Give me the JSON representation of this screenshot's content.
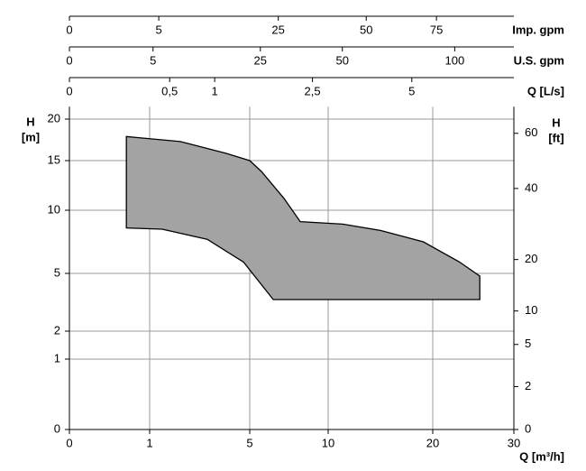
{
  "chart_data": {
    "type": "area",
    "top_axes": [
      {
        "label": "Imp. gpm",
        "ticks": [
          0,
          5,
          25,
          50,
          75
        ]
      },
      {
        "label": "U.S. gpm",
        "ticks": [
          0,
          5,
          25,
          50,
          100
        ]
      },
      {
        "label": "Q [L/s]",
        "ticks": [
          0,
          {
            "value": 0.5,
            "label": "0,5"
          },
          1,
          {
            "value": 2.5,
            "label": "2,5"
          },
          5
        ]
      }
    ],
    "xlabel": "Q [m³/h]",
    "ylabel": "H",
    "yunit": "[m]",
    "y2label": "H",
    "y2unit": "[ft]",
    "xlim": [
      0,
      30
    ],
    "xticks": [
      0,
      1,
      5,
      10,
      20,
      30
    ],
    "ylim": [
      0,
      21.5
    ],
    "yticks": [
      0,
      1,
      2,
      5,
      10,
      15,
      20
    ],
    "y2ticks": [
      0,
      2,
      5,
      10,
      20,
      40,
      60
    ],
    "grid": true,
    "color": "#a3a3a3",
    "area": {
      "x": [
        0.71,
        0.82,
        2.23,
        4.03,
        5.0,
        5.75,
        7.18,
        8.22,
        11.4,
        15.0,
        19.1,
        23.3,
        25.8,
        25.8,
        6.5,
        4.75,
        3.3,
        1.5,
        0.71
      ],
      "values": [
        17.9,
        17.8,
        17.3,
        15.9,
        15.0,
        13.9,
        11.2,
        9.1,
        8.9,
        8.4,
        7.5,
        5.9,
        4.86,
        3.64,
        3.64,
        5.9,
        7.7,
        8.5,
        8.6
      ]
    }
  }
}
